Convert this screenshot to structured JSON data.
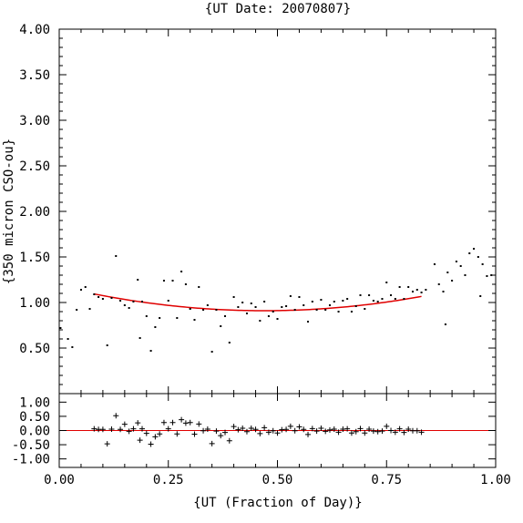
{
  "chart_data": [
    {
      "type": "scatter",
      "title": "{UT Date: 20070807}",
      "xlabel": "",
      "ylabel": "{350 micron CSO-ou}",
      "xlim": [
        0.0,
        1.0
      ],
      "ylim": [
        0.0,
        4.0
      ],
      "x_ticks": [
        "0.00",
        "0.25",
        "0.50",
        "0.75",
        "1.00"
      ],
      "y_ticks": [
        "0.50",
        "1.00",
        "1.50",
        "2.00",
        "2.50",
        "3.00",
        "3.50",
        "4.00"
      ],
      "series": [
        {
          "style": "points",
          "color": "#000000",
          "points": [
            [
              0.003,
              0.72
            ],
            [
              0.02,
              0.6
            ],
            [
              0.03,
              0.51
            ],
            [
              0.04,
              0.92
            ],
            [
              0.05,
              1.14
            ],
            [
              0.06,
              1.17
            ],
            [
              0.07,
              0.93
            ],
            [
              0.08,
              1.09
            ],
            [
              0.09,
              1.06
            ],
            [
              0.1,
              1.04
            ],
            [
              0.11,
              0.53
            ],
            [
              0.12,
              1.05
            ],
            [
              0.13,
              1.51
            ],
            [
              0.14,
              1.02
            ],
            [
              0.15,
              0.97
            ],
            [
              0.16,
              0.94
            ],
            [
              0.17,
              1.01
            ],
            [
              0.18,
              1.25
            ],
            [
              0.185,
              0.61
            ],
            [
              0.19,
              1.01
            ],
            [
              0.2,
              0.85
            ],
            [
              0.21,
              0.47
            ],
            [
              0.22,
              0.73
            ],
            [
              0.23,
              0.83
            ],
            [
              0.24,
              1.24
            ],
            [
              0.25,
              1.02
            ],
            [
              0.26,
              1.24
            ],
            [
              0.27,
              0.83
            ],
            [
              0.28,
              1.34
            ],
            [
              0.29,
              1.2
            ],
            [
              0.3,
              0.93
            ],
            [
              0.31,
              0.81
            ],
            [
              0.32,
              1.17
            ],
            [
              0.33,
              0.92
            ],
            [
              0.34,
              0.97
            ],
            [
              0.35,
              0.46
            ],
            [
              0.36,
              0.92
            ],
            [
              0.37,
              0.74
            ],
            [
              0.38,
              0.85
            ],
            [
              0.39,
              0.56
            ],
            [
              0.4,
              1.06
            ],
            [
              0.41,
              0.95
            ],
            [
              0.42,
              1.0
            ],
            [
              0.43,
              0.88
            ],
            [
              0.44,
              0.99
            ],
            [
              0.45,
              0.95
            ],
            [
              0.46,
              0.8
            ],
            [
              0.47,
              1.01
            ],
            [
              0.48,
              0.85
            ],
            [
              0.49,
              0.9
            ],
            [
              0.5,
              0.82
            ],
            [
              0.51,
              0.95
            ],
            [
              0.52,
              0.96
            ],
            [
              0.53,
              1.07
            ],
            [
              0.54,
              0.92
            ],
            [
              0.55,
              1.06
            ],
            [
              0.56,
              0.97
            ],
            [
              0.57,
              0.79
            ],
            [
              0.58,
              1.01
            ],
            [
              0.59,
              0.92
            ],
            [
              0.6,
              1.03
            ],
            [
              0.61,
              0.92
            ],
            [
              0.62,
              0.97
            ],
            [
              0.63,
              1.01
            ],
            [
              0.64,
              0.9
            ],
            [
              0.65,
              1.02
            ],
            [
              0.66,
              1.04
            ],
            [
              0.67,
              0.9
            ],
            [
              0.68,
              0.96
            ],
            [
              0.69,
              1.08
            ],
            [
              0.7,
              0.93
            ],
            [
              0.71,
              1.08
            ],
            [
              0.72,
              1.02
            ],
            [
              0.73,
              1.01
            ],
            [
              0.74,
              1.04
            ],
            [
              0.75,
              1.22
            ],
            [
              0.76,
              1.08
            ],
            [
              0.77,
              1.04
            ],
            [
              0.78,
              1.17
            ],
            [
              0.79,
              1.04
            ],
            [
              0.8,
              1.17
            ],
            [
              0.81,
              1.12
            ],
            [
              0.82,
              1.14
            ],
            [
              0.83,
              1.11
            ],
            [
              0.84,
              1.14
            ],
            [
              0.86,
              1.42
            ],
            [
              0.87,
              1.2
            ],
            [
              0.88,
              1.12
            ],
            [
              0.885,
              0.76
            ],
            [
              0.89,
              1.33
            ],
            [
              0.9,
              1.24
            ],
            [
              0.91,
              1.45
            ],
            [
              0.92,
              1.4
            ],
            [
              0.93,
              1.3
            ],
            [
              0.94,
              1.54
            ],
            [
              0.95,
              1.59
            ],
            [
              0.96,
              1.5
            ],
            [
              0.965,
              1.07
            ],
            [
              0.97,
              1.42
            ],
            [
              0.98,
              1.29
            ],
            [
              0.99,
              1.3
            ]
          ]
        },
        {
          "style": "fit-line",
          "color": "#e00000",
          "x_range": [
            0.08,
            0.83
          ],
          "quadratic_vertex": [
            0.47,
            0.91
          ],
          "quadratic_coeff": 1.21
        }
      ]
    },
    {
      "type": "scatter",
      "title": "",
      "xlabel": "{UT (Fraction of Day)}",
      "ylabel": "",
      "xlim": [
        0.0,
        1.0
      ],
      "ylim": [
        -1.3,
        1.3
      ],
      "x_ticks": [
        "0.00",
        "0.25",
        "0.50",
        "0.75",
        "1.00"
      ],
      "y_ticks": [
        "1.00",
        "0.50",
        "0.00",
        "-0.50",
        "-1.00"
      ],
      "zero_line_color": "#e00000",
      "series": [
        {
          "style": "plus",
          "color": "#000000",
          "points": [
            [
              0.08,
              0.06
            ],
            [
              0.09,
              0.04
            ],
            [
              0.1,
              0.04
            ],
            [
              0.11,
              -0.47
            ],
            [
              0.12,
              0.05
            ],
            [
              0.13,
              0.52
            ],
            [
              0.14,
              0.04
            ],
            [
              0.15,
              0.22
            ],
            [
              0.16,
              -0.03
            ],
            [
              0.17,
              0.06
            ],
            [
              0.18,
              0.27
            ],
            [
              0.185,
              -0.34
            ],
            [
              0.19,
              0.06
            ],
            [
              0.2,
              -0.1
            ],
            [
              0.21,
              -0.48
            ],
            [
              0.22,
              -0.22
            ],
            [
              0.23,
              -0.12
            ],
            [
              0.24,
              0.28
            ],
            [
              0.25,
              0.06
            ],
            [
              0.26,
              0.28
            ],
            [
              0.27,
              -0.12
            ],
            [
              0.28,
              0.38
            ],
            [
              0.29,
              0.26
            ],
            [
              0.3,
              0.28
            ],
            [
              0.31,
              -0.13
            ],
            [
              0.32,
              0.23
            ],
            [
              0.33,
              -0.01
            ],
            [
              0.34,
              0.05
            ],
            [
              0.35,
              -0.46
            ],
            [
              0.36,
              -0.02
            ],
            [
              0.37,
              -0.18
            ],
            [
              0.38,
              -0.07
            ],
            [
              0.39,
              -0.36
            ],
            [
              0.4,
              0.14
            ],
            [
              0.41,
              0.03
            ],
            [
              0.42,
              0.08
            ],
            [
              0.43,
              -0.04
            ],
            [
              0.44,
              0.08
            ],
            [
              0.45,
              0.04
            ],
            [
              0.46,
              -0.11
            ],
            [
              0.47,
              0.1
            ],
            [
              0.48,
              -0.06
            ],
            [
              0.49,
              -0.01
            ],
            [
              0.5,
              -0.09
            ],
            [
              0.51,
              0.03
            ],
            [
              0.52,
              0.04
            ],
            [
              0.53,
              0.15
            ],
            [
              0.54,
              -0.01
            ],
            [
              0.55,
              0.13
            ],
            [
              0.56,
              0.04
            ],
            [
              0.57,
              -0.14
            ],
            [
              0.58,
              0.07
            ],
            [
              0.59,
              -0.02
            ],
            [
              0.6,
              0.08
            ],
            [
              0.61,
              -0.03
            ],
            [
              0.62,
              0.02
            ],
            [
              0.63,
              0.05
            ],
            [
              0.64,
              -0.06
            ],
            [
              0.65,
              0.05
            ],
            [
              0.66,
              0.06
            ],
            [
              0.67,
              -0.09
            ],
            [
              0.68,
              -0.04
            ],
            [
              0.69,
              0.07
            ],
            [
              0.7,
              -0.09
            ],
            [
              0.71,
              0.05
            ],
            [
              0.72,
              -0.02
            ],
            [
              0.73,
              -0.04
            ],
            [
              0.74,
              -0.02
            ],
            [
              0.75,
              0.15
            ],
            [
              0.76,
              0.0
            ],
            [
              0.77,
              -0.06
            ],
            [
              0.78,
              0.06
            ],
            [
              0.79,
              -0.07
            ],
            [
              0.8,
              0.05
            ],
            [
              0.81,
              -0.01
            ],
            [
              0.82,
              -0.01
            ],
            [
              0.83,
              -0.06
            ]
          ]
        }
      ]
    }
  ]
}
